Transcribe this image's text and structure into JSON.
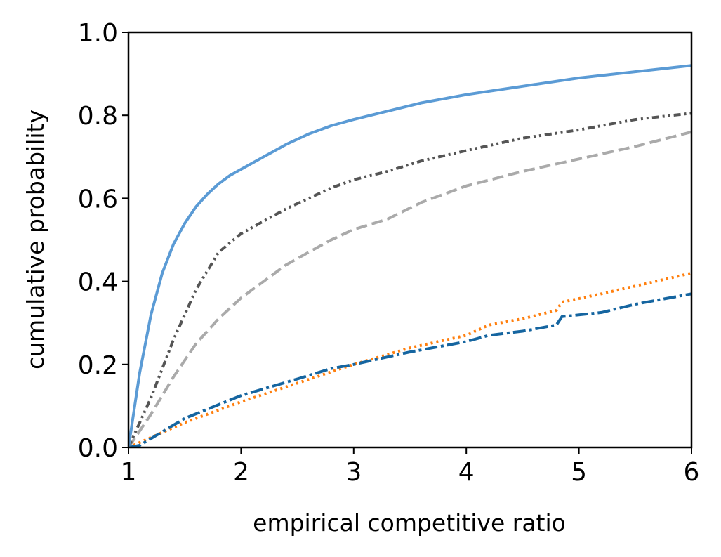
{
  "chart_data": {
    "type": "line",
    "title": "",
    "xlabel": "empirical competitive ratio",
    "ylabel": "cumulative probability",
    "xlim": [
      1,
      6
    ],
    "ylim": [
      0,
      1.0
    ],
    "xticks": [
      1,
      2,
      3,
      4,
      5,
      6
    ],
    "xtick_labels": [
      "1",
      "2",
      "3",
      "4",
      "5",
      "6"
    ],
    "yticks": [
      0,
      0.2,
      0.4,
      0.6,
      0.8,
      1.0
    ],
    "ytick_labels": [
      "0.0",
      "0.2",
      "0.4",
      "0.6",
      "0.8",
      "1.0"
    ],
    "grid": false,
    "legend": "none",
    "series": [
      {
        "color": "#5b9bd5",
        "line_style": "solid",
        "x": [
          1.0,
          1.1,
          1.2,
          1.3,
          1.4,
          1.5,
          1.6,
          1.7,
          1.8,
          1.9,
          2.0,
          2.2,
          2.4,
          2.6,
          2.8,
          3.0,
          3.3,
          3.6,
          4.0,
          4.5,
          5.0,
          5.5,
          6.0
        ],
        "y": [
          0.0,
          0.18,
          0.32,
          0.42,
          0.49,
          0.54,
          0.58,
          0.61,
          0.635,
          0.655,
          0.67,
          0.7,
          0.73,
          0.755,
          0.775,
          0.79,
          0.81,
          0.83,
          0.85,
          0.87,
          0.89,
          0.905,
          0.92
        ]
      },
      {
        "color": "#555555",
        "line_style": "dash-dot-dot",
        "x": [
          1.0,
          1.2,
          1.4,
          1.6,
          1.8,
          2.0,
          2.2,
          2.4,
          2.6,
          2.8,
          3.0,
          3.3,
          3.6,
          4.0,
          4.5,
          5.0,
          5.5,
          6.0
        ],
        "y": [
          0.0,
          0.12,
          0.26,
          0.38,
          0.47,
          0.515,
          0.545,
          0.575,
          0.6,
          0.625,
          0.645,
          0.665,
          0.69,
          0.715,
          0.745,
          0.765,
          0.79,
          0.805
        ]
      },
      {
        "color": "#aaaaaa",
        "line_style": "dashed",
        "x": [
          1.0,
          1.2,
          1.4,
          1.6,
          1.8,
          2.0,
          2.2,
          2.4,
          2.6,
          2.8,
          3.0,
          3.3,
          3.6,
          4.0,
          4.5,
          5.0,
          5.5,
          6.0
        ],
        "y": [
          0.0,
          0.08,
          0.17,
          0.25,
          0.31,
          0.36,
          0.4,
          0.44,
          0.47,
          0.5,
          0.525,
          0.55,
          0.59,
          0.63,
          0.665,
          0.695,
          0.725,
          0.76
        ]
      },
      {
        "color": "#ff7f0e",
        "line_style": "dotted",
        "x": [
          1.0,
          1.5,
          2.0,
          2.5,
          3.0,
          3.5,
          4.0,
          4.2,
          4.5,
          4.8,
          4.85,
          5.2,
          5.6,
          6.0
        ],
        "y": [
          0.0,
          0.06,
          0.11,
          0.155,
          0.2,
          0.24,
          0.27,
          0.295,
          0.31,
          0.33,
          0.35,
          0.37,
          0.395,
          0.42
        ]
      },
      {
        "color": "#1565a0",
        "line_style": "dash-dot",
        "x": [
          1.0,
          1.1,
          1.5,
          2.0,
          2.5,
          2.8,
          3.0,
          3.5,
          4.0,
          4.2,
          4.5,
          4.8,
          4.85,
          5.2,
          5.5,
          6.0
        ],
        "y": [
          0.0,
          0.005,
          0.07,
          0.125,
          0.165,
          0.19,
          0.2,
          0.23,
          0.255,
          0.27,
          0.28,
          0.295,
          0.315,
          0.325,
          0.345,
          0.37
        ]
      }
    ]
  }
}
